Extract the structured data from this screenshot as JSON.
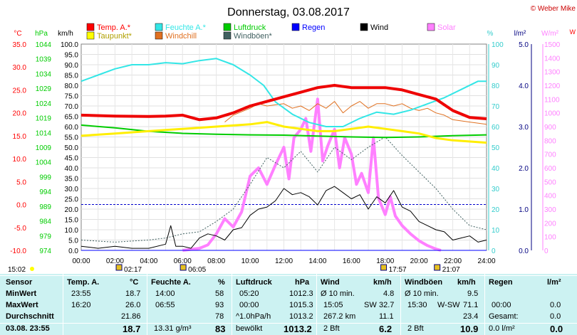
{
  "header": {
    "title": "Donnerstag, 03.08.2017",
    "credit": "© Weber Mike",
    "edge_mark": "W"
  },
  "legend": [
    {
      "label": "Temp. A.*",
      "color": "#ff0000"
    },
    {
      "label": "Feuchte A.*",
      "color": "#33e6e6"
    },
    {
      "label": "Luftdruck",
      "color": "#00cc00"
    },
    {
      "label": "Regen",
      "color": "#0000ff"
    },
    {
      "label": "Wind",
      "color": "#000000"
    },
    {
      "label": "Solar",
      "color": "#ff80ff"
    },
    {
      "label": "Taupunkt*",
      "color": "#ffff00"
    },
    {
      "label": "Windchill",
      "color": "#e07020"
    },
    {
      "label": "Windböen*",
      "color": "#406060"
    }
  ],
  "axes": {
    "celsius": {
      "unit": "°C",
      "ticks": [
        "35.0",
        "30.0",
        "25.0",
        "20.0",
        "15.0",
        "10.0",
        "5.0",
        "0.0",
        "-5.0",
        "-10.0"
      ],
      "color": "#ff0000"
    },
    "hpa": {
      "unit": "hPa",
      "ticks": [
        "1044",
        "1039",
        "1034",
        "1029",
        "1024",
        "1019",
        "1014",
        "1009",
        "1004",
        "999",
        "994",
        "989",
        "984",
        "979",
        "974"
      ],
      "color": "#00cc00"
    },
    "kmh": {
      "unit": "km/h",
      "ticks": [
        "100.0",
        "95.0",
        "90.0",
        "85.0",
        "80.0",
        "75.0",
        "70.0",
        "65.0",
        "60.0",
        "55.0",
        "50.0",
        "45.0",
        "40.0",
        "35.0",
        "30.0",
        "25.0",
        "20.0",
        "15.0",
        "10.0",
        "5.0",
        "0.0"
      ],
      "color": "#000000"
    },
    "percent": {
      "unit": "%",
      "ticks": [
        "100",
        "90",
        "80",
        "70",
        "60",
        "50",
        "40",
        "30",
        "20",
        "10",
        "0"
      ],
      "color": "#33cccc"
    },
    "rain": {
      "unit": "l/m²",
      "ticks": [
        "5.0",
        "4.0",
        "3.0",
        "2.0",
        "1.0",
        "0.0"
      ],
      "color": "#000080"
    },
    "solar": {
      "unit": "W/m²",
      "ticks": [
        "1500",
        "1400",
        "1300",
        "1200",
        "1100",
        "1000",
        "900",
        "800",
        "700",
        "600",
        "500",
        "400",
        "300",
        "200",
        "100",
        "0"
      ],
      "color": "#ff80ff"
    },
    "time": {
      "ticks": [
        "00:00",
        "02:00",
        "04:00",
        "06:00",
        "08:00",
        "10:00",
        "12:00",
        "14:00",
        "16:00",
        "18:00",
        "20:00",
        "22:00",
        "24:00"
      ]
    }
  },
  "events": {
    "left_time": "15:02",
    "sun_below": [
      {
        "t": 2.28,
        "label": "02:17"
      },
      {
        "t": 6.08,
        "label": "06:05"
      },
      {
        "t": 17.95,
        "label": "17:57"
      },
      {
        "t": 21.12,
        "label": "21:07"
      }
    ]
  },
  "chart_data": {
    "type": "line",
    "x_unit": "hour of day",
    "x_range": [
      0,
      24
    ],
    "series": [
      {
        "name": "Temp. A.*",
        "unit": "°C",
        "points": [
          [
            0,
            19.5
          ],
          [
            2,
            19.3
          ],
          [
            4,
            19.2
          ],
          [
            5,
            19.3
          ],
          [
            6,
            19.5
          ],
          [
            7,
            18.5
          ],
          [
            8,
            18.9
          ],
          [
            9,
            20.0
          ],
          [
            10,
            21.5
          ],
          [
            11,
            22.5
          ],
          [
            12,
            23.5
          ],
          [
            13,
            24.5
          ],
          [
            14,
            25.5
          ],
          [
            15,
            26.0
          ],
          [
            16,
            25.5
          ],
          [
            17,
            25.5
          ],
          [
            18,
            25.5
          ],
          [
            19,
            25.0
          ],
          [
            20,
            24.0
          ],
          [
            21,
            23.0
          ],
          [
            22,
            20.5
          ],
          [
            23,
            19.0
          ],
          [
            24,
            18.7
          ]
        ]
      },
      {
        "name": "Feuchte A.*",
        "unit": "%",
        "points": [
          [
            0,
            82
          ],
          [
            1,
            85
          ],
          [
            2,
            88
          ],
          [
            3,
            90
          ],
          [
            4,
            90
          ],
          [
            5,
            91
          ],
          [
            6,
            90.5
          ],
          [
            7,
            92
          ],
          [
            8,
            93
          ],
          [
            9,
            90
          ],
          [
            10,
            85
          ],
          [
            10.8,
            80
          ],
          [
            11.5,
            72
          ],
          [
            12.5,
            66
          ],
          [
            13.5,
            62
          ],
          [
            14.5,
            60
          ],
          [
            15.5,
            60
          ],
          [
            16.5,
            64
          ],
          [
            17.5,
            67
          ],
          [
            18.5,
            66
          ],
          [
            19.5,
            68
          ],
          [
            20.5,
            71
          ],
          [
            21.5,
            74
          ],
          [
            22.5,
            78
          ],
          [
            23.5,
            82
          ],
          [
            24,
            82
          ]
        ]
      },
      {
        "name": "Luftdruck",
        "unit": "hPa",
        "points": [
          [
            0,
            1016.5
          ],
          [
            2,
            1015.6
          ],
          [
            4,
            1014.4
          ],
          [
            6,
            1013.7
          ],
          [
            8,
            1013.4
          ],
          [
            10,
            1013.2
          ],
          [
            12,
            1013.1
          ],
          [
            14,
            1012.8
          ],
          [
            16,
            1012.5
          ],
          [
            18,
            1012.3
          ],
          [
            20,
            1012.5
          ],
          [
            22,
            1012.9
          ],
          [
            24,
            1013.2
          ]
        ]
      },
      {
        "name": "Taupunkt*",
        "unit": "°C",
        "points": [
          [
            0,
            15.0
          ],
          [
            2,
            15.5
          ],
          [
            4,
            16.0
          ],
          [
            6,
            16.5
          ],
          [
            8,
            17.0
          ],
          [
            10,
            17.5
          ],
          [
            11,
            18.0
          ],
          [
            12,
            17.0
          ],
          [
            13,
            16.5
          ],
          [
            14,
            16.0
          ],
          [
            15,
            16.0
          ],
          [
            16,
            16.5
          ],
          [
            17,
            17.0
          ],
          [
            18,
            16.5
          ],
          [
            19,
            16.0
          ],
          [
            20,
            15.5
          ],
          [
            21,
            14.5
          ],
          [
            22,
            14.0
          ],
          [
            24,
            13.5
          ]
        ]
      },
      {
        "name": "Windchill",
        "unit": "°C",
        "points": [
          [
            8.5,
            18.0
          ],
          [
            9,
            19.5
          ],
          [
            10,
            21.0
          ],
          [
            10.5,
            22.0
          ],
          [
            11,
            21.5
          ],
          [
            12,
            22.0
          ],
          [
            12.5,
            21.0
          ],
          [
            13,
            21.5
          ],
          [
            13.5,
            20.5
          ],
          [
            14,
            22.0
          ],
          [
            14.5,
            21.0
          ],
          [
            15,
            22.5
          ],
          [
            15.5,
            20.0
          ],
          [
            16,
            21.5
          ],
          [
            16.5,
            22.5
          ],
          [
            17,
            21.0
          ],
          [
            17.5,
            22.0
          ],
          [
            18,
            22.0
          ],
          [
            18.5,
            21.5
          ],
          [
            19,
            22.0
          ],
          [
            19.5,
            21.0
          ],
          [
            20,
            20.5
          ],
          [
            20.5,
            21.0
          ],
          [
            21,
            20.0
          ],
          [
            21.5,
            19.5
          ],
          [
            22,
            18.5
          ],
          [
            23,
            18.0
          ],
          [
            24,
            17.5
          ]
        ]
      },
      {
        "name": "Wind",
        "unit": "km/h",
        "points": [
          [
            0,
            2
          ],
          [
            1,
            1
          ],
          [
            2,
            2
          ],
          [
            3,
            1
          ],
          [
            4,
            1
          ],
          [
            5,
            3
          ],
          [
            5.3,
            12
          ],
          [
            5.6,
            2
          ],
          [
            6,
            2
          ],
          [
            6.5,
            1
          ],
          [
            7,
            6
          ],
          [
            7.5,
            8
          ],
          [
            8,
            7
          ],
          [
            8.5,
            5
          ],
          [
            9,
            10
          ],
          [
            9.5,
            11
          ],
          [
            10,
            17
          ],
          [
            10.5,
            20
          ],
          [
            11,
            21
          ],
          [
            11.5,
            24
          ],
          [
            12,
            30
          ],
          [
            12.5,
            27
          ],
          [
            13,
            28
          ],
          [
            13.5,
            26
          ],
          [
            14,
            22
          ],
          [
            14.5,
            29
          ],
          [
            15,
            31
          ],
          [
            15.5,
            28
          ],
          [
            16,
            25
          ],
          [
            16.5,
            27
          ],
          [
            17,
            20
          ],
          [
            17.5,
            26
          ],
          [
            18,
            23
          ],
          [
            18.5,
            29
          ],
          [
            19,
            21
          ],
          [
            19.5,
            19
          ],
          [
            20,
            14
          ],
          [
            20.5,
            12
          ],
          [
            21,
            10
          ],
          [
            21.5,
            9
          ],
          [
            22,
            5
          ],
          [
            22.5,
            6
          ],
          [
            23,
            7
          ],
          [
            23.5,
            4
          ],
          [
            24,
            5
          ]
        ]
      },
      {
        "name": "Windböen*",
        "unit": "km/h",
        "points": [
          [
            0,
            5
          ],
          [
            2,
            4
          ],
          [
            4,
            5
          ],
          [
            5,
            6
          ],
          [
            6,
            8
          ],
          [
            7,
            9
          ],
          [
            8,
            14
          ],
          [
            9,
            20
          ],
          [
            10,
            32
          ],
          [
            11,
            45
          ],
          [
            12,
            40
          ],
          [
            13,
            48
          ],
          [
            14,
            38
          ],
          [
            15,
            50
          ],
          [
            16,
            44
          ],
          [
            17,
            50
          ],
          [
            18,
            55
          ],
          [
            19,
            46
          ],
          [
            20,
            38
          ],
          [
            21,
            30
          ],
          [
            22,
            20
          ],
          [
            23,
            12
          ],
          [
            24,
            10
          ]
        ]
      },
      {
        "name": "Solar",
        "unit": "W/m²",
        "points": [
          [
            6,
            0
          ],
          [
            7,
            15
          ],
          [
            7.5,
            40
          ],
          [
            8,
            120
          ],
          [
            8.5,
            230
          ],
          [
            9,
            170
          ],
          [
            9.5,
            280
          ],
          [
            10,
            540
          ],
          [
            10.5,
            600
          ],
          [
            11,
            480
          ],
          [
            11.5,
            620
          ],
          [
            12,
            750
          ],
          [
            12.3,
            520
          ],
          [
            12.6,
            820
          ],
          [
            13,
            880
          ],
          [
            13.3,
            960
          ],
          [
            13.6,
            720
          ],
          [
            14,
            1100
          ],
          [
            14.3,
            650
          ],
          [
            14.6,
            760
          ],
          [
            15,
            880
          ],
          [
            15.3,
            600
          ],
          [
            15.6,
            820
          ],
          [
            16,
            700
          ],
          [
            16.3,
            480
          ],
          [
            16.6,
            560
          ],
          [
            17,
            420
          ],
          [
            17.3,
            820
          ],
          [
            17.6,
            380
          ],
          [
            18,
            260
          ],
          [
            18.3,
            390
          ],
          [
            18.6,
            250
          ],
          [
            19,
            180
          ],
          [
            19.5,
            120
          ],
          [
            20,
            70
          ],
          [
            20.5,
            35
          ],
          [
            21,
            10
          ],
          [
            21.3,
            0
          ]
        ]
      },
      {
        "name": "Regen",
        "unit": "l/m²",
        "points": [
          [
            0,
            0
          ],
          [
            24,
            0
          ]
        ]
      }
    ],
    "reference_line": {
      "unit": "°C",
      "value": 0
    }
  },
  "stats": {
    "header": {
      "sensor": "Sensor",
      "temp": "Temp. A.",
      "temp_unit": "°C",
      "feuchte": "Feuchte A.",
      "feuchte_unit": "%",
      "luftdruck": "Luftdruck",
      "luftdruck_unit": "hPa",
      "wind": "Wind",
      "wind_unit": "km/h",
      "boeen": "Windböen",
      "boeen_unit": "km/h",
      "regen": "Regen",
      "regen_unit": "l/m²"
    },
    "min": {
      "label": "MinWert",
      "temp_time": "23:55",
      "temp_val": "18.7",
      "feuchte_time": "14:00",
      "feuchte_val": "58",
      "druck_time": "05:20",
      "druck_val": "1012.3",
      "wind_label": "Ø 10 min.",
      "wind_val": "4.8",
      "boeen_label": "Ø 10 min.",
      "boeen_val": "9.5"
    },
    "max": {
      "label": "MaxWert",
      "temp_time": "16:20",
      "temp_val": "26.0",
      "feuchte_time": "06:55",
      "feuchte_val": "93",
      "druck_time": "00:00",
      "druck_val": "1015.3",
      "wind_time": "15:05",
      "wind_dir": "SW",
      "wind_val": "32.7",
      "boeen_time": "15:30",
      "boeen_dir": "W-SW",
      "boeen_val": "71.1",
      "regen_time": "00:00",
      "regen_val": "0.0"
    },
    "avg": {
      "label": "Durchschnitt",
      "temp_val": "21.86",
      "feuchte_val": "78",
      "druck_label": "^1.0hPa/h",
      "druck_val": "1013.2",
      "wind_km": "267.2 km",
      "wind_val": "11.1",
      "boeen_val": "23.4",
      "regen_label": "Gesamt:",
      "regen_val": "0.0"
    },
    "current": {
      "label": "03.08. 23:55",
      "temp_val": "18.7",
      "feuchte_abs": "13.31 g/m³",
      "feuchte_val": "83",
      "druck_label": "bewölkt",
      "druck_val": "1013.2",
      "wind_bft": "2 Bft",
      "wind_val": "6.2",
      "boeen_bft": "2 Bft",
      "boeen_val": "10.9",
      "regen_rate": "0.0 l/m²",
      "regen_val": "0.0"
    }
  }
}
